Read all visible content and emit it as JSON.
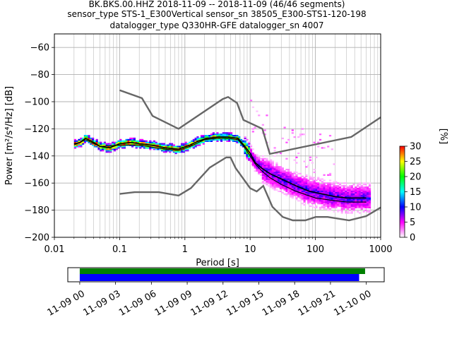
{
  "chart_data": {
    "type": "heatmap",
    "title_lines": [
      "BK.BKS.00.HHZ   2018-11-09 -- 2018-11-09  (46/46 segments)",
      "sensor_type STS-1_E300Vertical sensor_sn 38505_E300-STS1-120-198",
      "datalogger_type Q330HR-GFE datalogger_sn 4007"
    ],
    "xlabel": "Period [s]",
    "ylabel": "Power [m²/s⁴/Hz] [dB]",
    "xscale": "log",
    "xlim": [
      0.01,
      1000
    ],
    "ylim": [
      -200,
      -50
    ],
    "xticks": [
      0.01,
      0.1,
      1,
      10,
      100,
      1000
    ],
    "xtick_labels": [
      "0.01",
      "0.1",
      "1",
      "10",
      "100",
      "1000"
    ],
    "yticks": [
      -200,
      -180,
      -160,
      -140,
      -120,
      -100,
      -80,
      -60
    ],
    "ytick_labels": [
      "−200",
      "−180",
      "−160",
      "−140",
      "−120",
      "−100",
      "−80",
      "−60"
    ],
    "grid": true,
    "colorbar": {
      "label": "[%]",
      "range": [
        0,
        30
      ],
      "ticks": [
        0,
        5,
        10,
        15,
        20,
        25,
        30
      ],
      "colormap": [
        "#ffffff",
        "#ff00ff",
        "#0000ff",
        "#00ffff",
        "#00ff00",
        "#ffff00",
        "#ff0000"
      ]
    },
    "mode_curve": [
      [
        0.02,
        -131
      ],
      [
        0.025,
        -130
      ],
      [
        0.03,
        -127
      ],
      [
        0.04,
        -130
      ],
      [
        0.05,
        -133
      ],
      [
        0.07,
        -134
      ],
      [
        0.1,
        -131
      ],
      [
        0.15,
        -130
      ],
      [
        0.2,
        -131
      ],
      [
        0.3,
        -132
      ],
      [
        0.5,
        -134
      ],
      [
        0.8,
        -135
      ],
      [
        1.2,
        -132
      ],
      [
        1.6,
        -129
      ],
      [
        2.2,
        -127
      ],
      [
        3.2,
        -126
      ],
      [
        4.5,
        -126
      ],
      [
        6.5,
        -127
      ],
      [
        8,
        -132
      ],
      [
        10,
        -138
      ],
      [
        12,
        -145
      ],
      [
        15,
        -149
      ],
      [
        20,
        -153
      ],
      [
        30,
        -157
      ],
      [
        50,
        -162
      ],
      [
        80,
        -166
      ],
      [
        100,
        -167
      ],
      [
        200,
        -170
      ],
      [
        300,
        -171
      ],
      [
        600,
        -171
      ]
    ],
    "mean_curve": [
      [
        0.02,
        -132
      ],
      [
        0.03,
        -128
      ],
      [
        0.05,
        -133
      ],
      [
        0.1,
        -132
      ],
      [
        0.2,
        -132
      ],
      [
        0.5,
        -135
      ],
      [
        0.8,
        -136
      ],
      [
        1.2,
        -133
      ],
      [
        2,
        -128
      ],
      [
        3.2,
        -127
      ],
      [
        4.5,
        -127
      ],
      [
        6.5,
        -128
      ],
      [
        8,
        -133
      ],
      [
        10,
        -140
      ],
      [
        12,
        -146
      ],
      [
        15,
        -151
      ],
      [
        20,
        -156
      ],
      [
        30,
        -161
      ],
      [
        50,
        -166
      ],
      [
        100,
        -171
      ],
      [
        200,
        -173
      ],
      [
        300,
        -174
      ],
      [
        600,
        -174
      ]
    ],
    "nhnm": [
      [
        0.1,
        -91.5
      ],
      [
        0.22,
        -97.4
      ],
      [
        0.32,
        -110.5
      ],
      [
        0.8,
        -120
      ],
      [
        3.8,
        -98
      ],
      [
        4.6,
        -96.5
      ],
      [
        6.3,
        -101
      ],
      [
        7.9,
        -113.5
      ],
      [
        15.4,
        -120
      ],
      [
        20,
        -138.5
      ],
      [
        354.8,
        -126
      ],
      [
        1000,
        -111.5
      ]
    ],
    "nlnm": [
      [
        0.1,
        -168
      ],
      [
        0.17,
        -166.7
      ],
      [
        0.4,
        -166.7
      ],
      [
        0.8,
        -169.2
      ],
      [
        1.24,
        -163.7
      ],
      [
        2.4,
        -148.6
      ],
      [
        4.3,
        -141.1
      ],
      [
        5,
        -141.1
      ],
      [
        6,
        -149
      ],
      [
        10,
        -163.8
      ],
      [
        12.6,
        -166.2
      ],
      [
        15.9,
        -162.1
      ],
      [
        21.9,
        -177.5
      ],
      [
        31.6,
        -185
      ],
      [
        45,
        -187.5
      ],
      [
        70,
        -187.5
      ],
      [
        101,
        -185
      ],
      [
        154,
        -185
      ],
      [
        328,
        -187.5
      ],
      [
        600,
        -184.4
      ],
      [
        1000,
        -178
      ]
    ],
    "timeline": {
      "xtick_labels": [
        "11-09 00",
        "11-09 03",
        "11-09 06",
        "11-09 09",
        "11-09 12",
        "11-09 15",
        "11-09 18",
        "11-09 21",
        "11-10 00"
      ],
      "start_hour": -1,
      "end_hour": 25.5,
      "data_coverage_hours": [
        0,
        23.9
      ],
      "psd_coverage_hours": [
        0,
        23.4
      ],
      "data_color": "#008000",
      "psd_color": "#0000ff"
    }
  }
}
